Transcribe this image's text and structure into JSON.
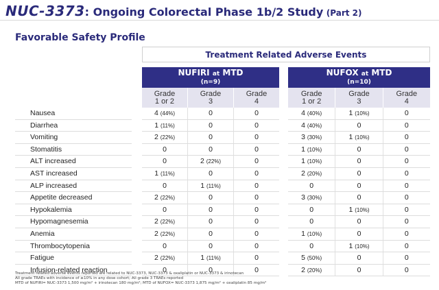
{
  "header": {
    "brand": "NUC-3373",
    "title_rest": ": Ongoing Colorectal Phase 1b/2 Study",
    "part": "(Part 2)"
  },
  "subtitle": "Favorable Safety Profile",
  "table_title": "Treatment Related Adverse Events",
  "groups": [
    {
      "name": "NUFIRI",
      "at": "at",
      "mtd": "MTD",
      "n": "(n=9)",
      "grades": [
        [
          "Grade",
          "1 or 2"
        ],
        [
          "Grade",
          "3"
        ],
        [
          "Grade",
          "4"
        ]
      ]
    },
    {
      "name": "NUFOX",
      "at": "at",
      "mtd": "MTD",
      "n": "(n=10)",
      "grades": [
        [
          "Grade",
          "1 or 2"
        ],
        [
          "Grade",
          "3"
        ],
        [
          "Grade",
          "4"
        ]
      ]
    }
  ],
  "rows": [
    {
      "label": "Nausea",
      "nufiri": [
        [
          "4",
          "(44%)"
        ],
        [
          "0",
          ""
        ],
        [
          "0",
          ""
        ]
      ],
      "nufox": [
        [
          "4",
          "(40%)"
        ],
        [
          "1",
          "(10%)"
        ],
        [
          "0",
          ""
        ]
      ]
    },
    {
      "label": "Diarrhea",
      "nufiri": [
        [
          "1",
          "(11%)"
        ],
        [
          "0",
          ""
        ],
        [
          "0",
          ""
        ]
      ],
      "nufox": [
        [
          "4",
          "(40%)"
        ],
        [
          "0",
          ""
        ],
        [
          "0",
          ""
        ]
      ]
    },
    {
      "label": "Vomiting",
      "nufiri": [
        [
          "2",
          "(22%)"
        ],
        [
          "0",
          ""
        ],
        [
          "0",
          ""
        ]
      ],
      "nufox": [
        [
          "3",
          "(30%)"
        ],
        [
          "1",
          "(10%)"
        ],
        [
          "0",
          ""
        ]
      ]
    },
    {
      "label": "Stomatitis",
      "nufiri": [
        [
          "0",
          ""
        ],
        [
          "0",
          ""
        ],
        [
          "0",
          ""
        ]
      ],
      "nufox": [
        [
          "1",
          "(10%)"
        ],
        [
          "0",
          ""
        ],
        [
          "0",
          ""
        ]
      ]
    },
    {
      "label": "ALT increased",
      "nufiri": [
        [
          "0",
          ""
        ],
        [
          "2",
          "(22%)"
        ],
        [
          "0",
          ""
        ]
      ],
      "nufox": [
        [
          "1",
          "(10%)"
        ],
        [
          "0",
          ""
        ],
        [
          "0",
          ""
        ]
      ]
    },
    {
      "label": "AST increased",
      "nufiri": [
        [
          "1",
          "(11%)"
        ],
        [
          "0",
          ""
        ],
        [
          "0",
          ""
        ]
      ],
      "nufox": [
        [
          "2",
          "(20%)"
        ],
        [
          "0",
          ""
        ],
        [
          "0",
          ""
        ]
      ]
    },
    {
      "label": "ALP increased",
      "nufiri": [
        [
          "0",
          ""
        ],
        [
          "1",
          "(11%)"
        ],
        [
          "0",
          ""
        ]
      ],
      "nufox": [
        [
          "0",
          ""
        ],
        [
          "0",
          ""
        ],
        [
          "0",
          ""
        ]
      ]
    },
    {
      "label": "Appetite decreased",
      "nufiri": [
        [
          "2",
          "(22%)"
        ],
        [
          "0",
          ""
        ],
        [
          "0",
          ""
        ]
      ],
      "nufox": [
        [
          "3",
          "(30%)"
        ],
        [
          "0",
          ""
        ],
        [
          "0",
          ""
        ]
      ]
    },
    {
      "label": "Hypokalemia",
      "nufiri": [
        [
          "0",
          ""
        ],
        [
          "0",
          ""
        ],
        [
          "0",
          ""
        ]
      ],
      "nufox": [
        [
          "0",
          ""
        ],
        [
          "1",
          "(10%)"
        ],
        [
          "0",
          ""
        ]
      ]
    },
    {
      "label": "Hypomagnesemia",
      "nufiri": [
        [
          "2",
          "(22%)"
        ],
        [
          "0",
          ""
        ],
        [
          "0",
          ""
        ]
      ],
      "nufox": [
        [
          "0",
          ""
        ],
        [
          "0",
          ""
        ],
        [
          "0",
          ""
        ]
      ]
    },
    {
      "label": "Anemia",
      "nufiri": [
        [
          "2",
          "(22%)"
        ],
        [
          "0",
          ""
        ],
        [
          "0",
          ""
        ]
      ],
      "nufox": [
        [
          "1",
          "(10%)"
        ],
        [
          "0",
          ""
        ],
        [
          "0",
          ""
        ]
      ]
    },
    {
      "label": "Thrombocytopenia",
      "nufiri": [
        [
          "0",
          ""
        ],
        [
          "0",
          ""
        ],
        [
          "0",
          ""
        ]
      ],
      "nufox": [
        [
          "0",
          ""
        ],
        [
          "1",
          "(10%)"
        ],
        [
          "0",
          ""
        ]
      ]
    },
    {
      "label": "Fatigue",
      "nufiri": [
        [
          "2",
          "(22%)"
        ],
        [
          "1",
          "(11%)"
        ],
        [
          "0",
          ""
        ]
      ],
      "nufox": [
        [
          "5",
          "(50%)"
        ],
        [
          "0",
          ""
        ],
        [
          "0",
          ""
        ]
      ]
    },
    {
      "label": "Infusion-related reaction",
      "nufiri": [
        [
          "0",
          ""
        ],
        [
          "0",
          ""
        ],
        [
          "0",
          ""
        ]
      ],
      "nufox": [
        [
          "2",
          "(20%)"
        ],
        [
          "0",
          ""
        ],
        [
          "0",
          ""
        ]
      ]
    }
  ],
  "footnotes": [
    "Treatment related adverse events reported are related to NUC-3373, NUC-3373 & oxaliplatin or NUC-3373 & irinotecan",
    "All grade TRAEs with incidence of ≥10% in any dose cohort; All grade 3 TRAEs reported",
    "MTD of NUFIRI= NUC-3373 1,500 mg/m² + irinotecan 180 mg/m²; MTD of NUFOX= NUC-3373 1,875 mg/m² + oxaliplatin 85 mg/m²"
  ],
  "colors": {
    "header_band": "#2f2f86",
    "grade_band": "#e4e3ef",
    "title_text": "#2a2a7a"
  }
}
